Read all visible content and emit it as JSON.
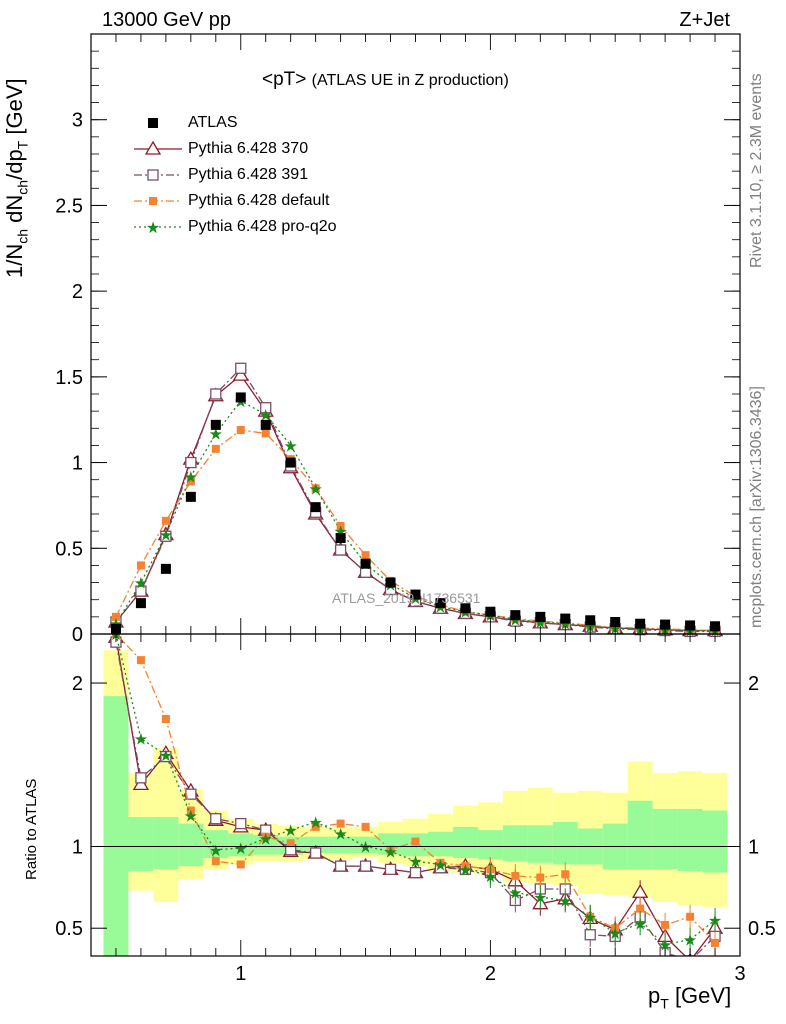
{
  "header": {
    "left": "13000 GeV pp",
    "right": "Z+Jet",
    "plot_title_main": "<pT>",
    "plot_title_sub": "(ATLAS UE in Z production)",
    "watermark": "ATLAS_2019_I1736531"
  },
  "side": {
    "rivet": "Rivet 3.1.10, ≥ 2.3M events",
    "mcplots": "mcplots.cern.ch [arXiv:1306.3436]"
  },
  "axes": {
    "xlabel": "p",
    "xlabel_sub": "T",
    "xlabel_unit": "[GeV]",
    "ylabel_ratio": "Ratio to ATLAS"
  },
  "colors": {
    "atlas": "#000000",
    "p370": "#8b1a2b",
    "p391": "#7a4e6a",
    "pdefault": "#f58231",
    "pq2o": "#1a8a1a",
    "band_inner": "#98fb98",
    "band_outer": "#ffff99"
  },
  "chart_data": {
    "type": "scatter",
    "x": [
      0.5,
      0.6,
      0.7,
      0.8,
      0.9,
      1.0,
      1.1,
      1.2,
      1.3,
      1.4,
      1.5,
      1.6,
      1.7,
      1.8,
      1.9,
      2.0,
      2.1,
      2.2,
      2.3,
      2.4,
      2.5,
      2.6,
      2.7,
      2.8,
      2.9
    ],
    "xlim": [
      0.4,
      3.0
    ],
    "xticks": [
      1,
      2,
      3
    ],
    "main": {
      "ylim": [
        0,
        3.5
      ],
      "yticks": [
        0,
        0.5,
        1,
        1.5,
        2,
        2.5,
        3
      ],
      "series": [
        {
          "key": "atlas",
          "name": "ATLAS",
          "values": [
            0.03,
            0.18,
            0.38,
            0.8,
            1.22,
            1.38,
            1.22,
            1.0,
            0.74,
            0.56,
            0.41,
            0.3,
            0.23,
            0.18,
            0.15,
            0.13,
            0.11,
            0.1,
            0.09,
            0.08,
            0.07,
            0.06,
            0.055,
            0.05,
            0.045
          ]
        },
        {
          "key": "p370",
          "name": "Pythia 6.428 370",
          "values": [
            0.07,
            0.25,
            0.58,
            1.02,
            1.39,
            1.51,
            1.3,
            0.97,
            0.7,
            0.49,
            0.36,
            0.26,
            0.19,
            0.15,
            0.12,
            0.1,
            0.08,
            0.065,
            0.055,
            0.045,
            0.035,
            0.03,
            0.025,
            0.02,
            0.02
          ]
        },
        {
          "key": "p391",
          "name": "Pythia 6.428 391",
          "values": [
            0.07,
            0.25,
            0.57,
            1.0,
            1.4,
            1.55,
            1.32,
            0.98,
            0.71,
            0.49,
            0.36,
            0.26,
            0.19,
            0.15,
            0.12,
            0.1,
            0.075,
            0.065,
            0.055,
            0.04,
            0.03,
            0.025,
            0.02,
            0.015,
            0.015
          ]
        },
        {
          "key": "pdefault",
          "name": "Pythia 6.428 default",
          "values": [
            0.1,
            0.4,
            0.66,
            0.89,
            1.08,
            1.19,
            1.17,
            1.02,
            0.85,
            0.63,
            0.46,
            0.31,
            0.22,
            0.17,
            0.13,
            0.11,
            0.09,
            0.075,
            0.065,
            0.05,
            0.04,
            0.035,
            0.03,
            0.025,
            0.02
          ]
        },
        {
          "key": "pq2o",
          "name": "Pythia 6.428 pro-q2o",
          "values": [
            0.06,
            0.3,
            0.58,
            0.92,
            1.17,
            1.36,
            1.28,
            1.1,
            0.85,
            0.6,
            0.41,
            0.29,
            0.21,
            0.16,
            0.13,
            0.11,
            0.085,
            0.07,
            0.06,
            0.045,
            0.035,
            0.03,
            0.025,
            0.02,
            0.02
          ]
        }
      ]
    },
    "ratio": {
      "ylim": [
        0.33,
        2.3
      ],
      "yticks": [
        0.5,
        1,
        2
      ],
      "band_inner": [
        [
          0.2,
          1.92
        ],
        [
          0.85,
          1.18
        ],
        [
          0.86,
          1.18
        ],
        [
          0.88,
          1.14
        ],
        [
          0.93,
          1.1
        ],
        [
          0.94,
          1.08
        ],
        [
          0.95,
          1.07
        ],
        [
          0.95,
          1.06
        ],
        [
          0.96,
          1.06
        ],
        [
          0.96,
          1.06
        ],
        [
          0.96,
          1.06
        ],
        [
          0.95,
          1.08
        ],
        [
          0.94,
          1.08
        ],
        [
          0.94,
          1.09
        ],
        [
          0.93,
          1.12
        ],
        [
          0.92,
          1.1
        ],
        [
          0.91,
          1.13
        ],
        [
          0.9,
          1.13
        ],
        [
          0.89,
          1.15
        ],
        [
          0.89,
          1.11
        ],
        [
          0.86,
          1.14
        ],
        [
          0.86,
          1.28
        ],
        [
          0.86,
          1.23
        ],
        [
          0.85,
          1.23
        ],
        [
          0.84,
          1.22
        ]
      ],
      "band_outer": [
        [
          0.2,
          2.2
        ],
        [
          0.73,
          1.45
        ],
        [
          0.66,
          1.6
        ],
        [
          0.8,
          1.35
        ],
        [
          0.86,
          1.22
        ],
        [
          0.89,
          1.17
        ],
        [
          0.91,
          1.14
        ],
        [
          0.91,
          1.13
        ],
        [
          0.92,
          1.12
        ],
        [
          0.92,
          1.12
        ],
        [
          0.93,
          1.12
        ],
        [
          0.9,
          1.15
        ],
        [
          0.88,
          1.17
        ],
        [
          0.85,
          1.2
        ],
        [
          0.84,
          1.25
        ],
        [
          0.83,
          1.27
        ],
        [
          0.78,
          1.34
        ],
        [
          0.77,
          1.36
        ],
        [
          0.76,
          1.33
        ],
        [
          0.71,
          1.34
        ],
        [
          0.7,
          1.33
        ],
        [
          0.69,
          1.52
        ],
        [
          0.66,
          1.45
        ],
        [
          0.64,
          1.46
        ],
        [
          0.63,
          1.45
        ]
      ],
      "series": [
        {
          "key": "p370",
          "values": [
            2.28,
            1.38,
            1.57,
            1.34,
            1.16,
            1.12,
            1.1,
            0.97,
            0.96,
            0.88,
            0.88,
            0.86,
            0.84,
            0.87,
            0.88,
            0.86,
            0.79,
            0.65,
            0.68,
            0.56,
            0.49,
            0.72,
            0.45,
            0.3,
            0.5
          ]
        },
        {
          "key": "p391",
          "values": [
            2.25,
            1.42,
            1.55,
            1.32,
            1.17,
            1.14,
            1.1,
            0.98,
            0.96,
            0.88,
            0.88,
            0.86,
            0.84,
            0.87,
            0.86,
            0.84,
            0.67,
            0.74,
            0.74,
            0.46,
            0.45,
            0.57,
            0.35,
            0.3,
            0.45
          ]
        },
        {
          "key": "pdefault",
          "values": [
            2.3,
            2.14,
            1.78,
            1.22,
            0.91,
            0.89,
            1.06,
            1.02,
            1.12,
            1.14,
            1.12,
            0.98,
            1.03,
            0.9,
            0.88,
            0.86,
            0.82,
            0.81,
            0.83,
            0.57,
            0.5,
            0.62,
            0.52,
            0.57,
            0.41
          ]
        },
        {
          "key": "pq2o",
          "values": [
            2.3,
            1.66,
            1.56,
            1.19,
            0.98,
            0.99,
            1.05,
            1.1,
            1.15,
            1.08,
            1.0,
            0.97,
            0.91,
            0.89,
            0.86,
            0.82,
            0.72,
            0.69,
            0.67,
            0.57,
            0.47,
            0.53,
            0.4,
            0.43,
            0.55
          ]
        }
      ]
    }
  }
}
